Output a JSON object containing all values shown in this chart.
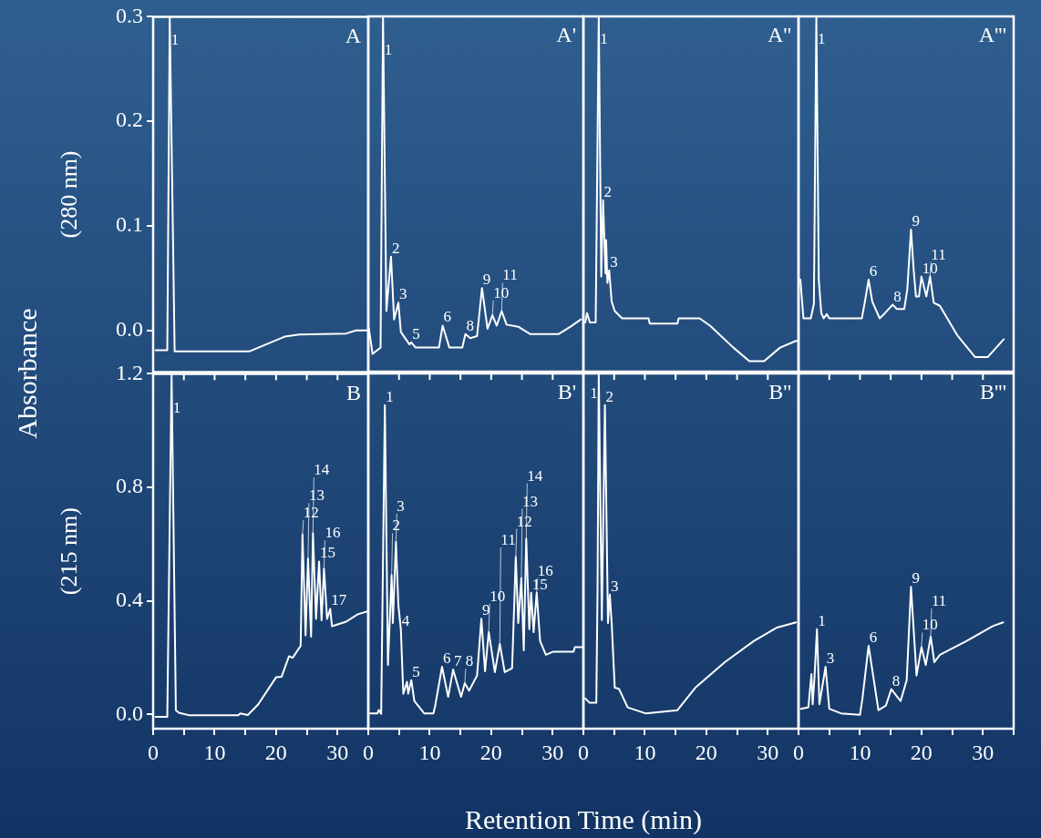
{
  "chart_data": [
    {
      "type": "line",
      "title": "A",
      "ylabel": "(280 nm)",
      "tick_labels": "y",
      "color": "#ffffff",
      "xlim": [
        0,
        35
      ],
      "ylim": [
        -0.04,
        0.3
      ],
      "yticks": [
        {
          "value": 0,
          "label": "0.0"
        },
        0.1,
        0.2,
        0.3
      ],
      "x": [
        0.4,
        2.3,
        2.7,
        3.5,
        15.7,
        21.4,
        23.8,
        31.4,
        33,
        35
      ],
      "values": [
        -0.019,
        -0.019,
        0.3,
        -0.02,
        -0.02,
        -0.006,
        -0.004,
        -0.003,
        0.0,
        0.0
      ],
      "annotations": [
        "Absorbance",
        {
          "text": "1",
          "x": 2.78,
          "y": 0.27
        }
      ]
    },
    {
      "type": "line",
      "title": "A'",
      "tick_labels": false,
      "color": "#ffffff",
      "xlim": [
        0,
        35
      ],
      "ylim": [
        -0.04,
        0.3
      ],
      "x": [
        0.1,
        0.7,
        2,
        2.4,
        2.95,
        3.7,
        4.2,
        4.9,
        5.3,
        6.7,
        7.0,
        7.7,
        11.5,
        12.1,
        13.2,
        15.3,
        15.8,
        16.6,
        17.7,
        18.5,
        19.4,
        20.2,
        20.9,
        21.7,
        22.5,
        24.4,
        26.3,
        31.0,
        32.9,
        34.6
      ],
      "values": [
        0.001,
        -0.023,
        -0.017,
        0.3,
        0.018,
        0.07,
        0.01,
        0.026,
        -0.002,
        -0.014,
        -0.012,
        -0.017,
        -0.017,
        0.004,
        -0.017,
        -0.017,
        -0.004,
        -0.008,
        -0.006,
        0.04,
        0.001,
        0.014,
        0.004,
        0.018,
        0.005,
        0.003,
        -0.004,
        -0.004,
        0.003,
        0.01
      ],
      "annotations": [
        {
          "text": "1",
          "x": 2.48,
          "y": 0.26
        },
        {
          "text": "2",
          "x": 3.7,
          "y": 0.07
        },
        {
          "text": "3",
          "x": 4.9,
          "y": 0.026
        },
        {
          "text": "5",
          "x": 7.0,
          "y": -0.012
        },
        {
          "text": "6",
          "x": 12.1,
          "y": 0.004
        },
        {
          "text": "8",
          "x": 15.8,
          "y": -0.004
        },
        {
          "text": "9",
          "x": 18.5,
          "y": 0.04
        },
        {
          "text": "10",
          "x": 20.2,
          "y": 0.014
        },
        {
          "text": "11",
          "x": 21.7,
          "y": 0.018
        }
      ]
    },
    {
      "type": "line",
      "title": "A''",
      "tick_labels": false,
      "color": "#ffffff",
      "xlim": [
        0,
        35
      ],
      "ylim": [
        -0.04,
        0.3
      ],
      "x": [
        0.3,
        0.6,
        1.05,
        2,
        2.5,
        2.9,
        3.2,
        3.6,
        3.7,
        3.9,
        4.2,
        4.6,
        5.1,
        6.3,
        10.6,
        10.8,
        15.3,
        15.5,
        18.9,
        20.6,
        24.4,
        27,
        29.4,
        32,
        34.4,
        35
      ],
      "values": [
        0.007,
        0.016,
        0.007,
        0.007,
        0.3,
        0.051,
        0.124,
        0.054,
        0.086,
        0.045,
        0.057,
        0.027,
        0.018,
        0.011,
        0.011,
        0.006,
        0.006,
        0.011,
        0.011,
        0.004,
        -0.017,
        -0.03,
        -0.03,
        -0.017,
        -0.011,
        -0.01
      ],
      "annotations": [
        {
          "text": "1",
          "x": 2.55,
          "y": 0.27
        },
        {
          "text": "2",
          "x": 3.2,
          "y": 0.124
        },
        {
          "text": "3",
          "x": 4.2,
          "y": 0.057
        }
      ]
    },
    {
      "type": "line",
      "title": "A'''",
      "tick_labels": false,
      "color": "#ffffff",
      "xlim": [
        0,
        35
      ],
      "ylim": [
        -0.04,
        0.3
      ],
      "x": [
        0.3,
        0.8,
        2.0,
        2.5,
        2.9,
        3.3,
        3.7,
        4.1,
        4.6,
        5.0,
        10.3,
        10.8,
        11.4,
        12,
        13.2,
        13.9,
        15.3,
        16.0,
        17.2,
        17.7,
        18.3,
        18.7,
        19.1,
        19.6,
        20,
        20.8,
        21.4,
        22,
        23,
        25.8,
        28.7,
        30.8,
        33.4
      ],
      "values": [
        0.048,
        0.011,
        0.011,
        0.025,
        0.3,
        0.048,
        0.016,
        0.011,
        0.015,
        0.011,
        0.011,
        0.027,
        0.048,
        0.027,
        0.011,
        0.015,
        0.024,
        0.02,
        0.02,
        0.039,
        0.096,
        0.06,
        0.032,
        0.032,
        0.051,
        0.032,
        0.051,
        0.026,
        0.023,
        -0.005,
        -0.026,
        -0.026,
        -0.009
      ],
      "annotations": [
        {
          "text": "1",
          "x": 2.95,
          "y": 0.27
        },
        {
          "text": "6",
          "x": 11.4,
          "y": 0.048
        },
        {
          "text": "8",
          "x": 15.3,
          "y": 0.024
        },
        {
          "text": "9",
          "x": 18.3,
          "y": 0.096
        },
        {
          "text": "10",
          "x": 20,
          "y": 0.051
        },
        {
          "text": "11",
          "x": 21.4,
          "y": 0.051
        }
      ]
    },
    {
      "type": "line",
      "title": "B",
      "ylabel": "(215 nm)",
      "xlabel": "Retention Time (min)",
      "color": "#ffffff",
      "xlim": [
        0,
        35
      ],
      "xticks": [
        0,
        {
          "value": 5,
          "label": null
        },
        10,
        {
          "value": 15,
          "label": null
        },
        20,
        {
          "value": 25,
          "label": null
        },
        30,
        {
          "value": 35,
          "label": null
        }
      ],
      "ylim": [
        -0.05,
        1.2
      ],
      "yticks": [
        {
          "value": 0,
          "label": "0.0"
        },
        0.4,
        0.8,
        1.2
      ],
      "x": [
        0.4,
        2.3,
        3.0,
        3.7,
        4.2,
        5.9,
        13.8,
        14.2,
        15.4,
        17.1,
        20,
        20.9,
        22.1,
        22.7,
        24,
        24.3,
        24.8,
        25.2,
        25.7,
        26.0,
        26.5,
        27.0,
        27.4,
        27.8,
        28.3,
        28.8,
        29.1,
        31.4,
        33.3,
        35
      ],
      "values": [
        -0.008,
        -0.008,
        1.2,
        0.015,
        0.006,
        -0.003,
        -0.003,
        0.004,
        -0.002,
        0.036,
        0.131,
        0.133,
        0.205,
        0.2,
        0.242,
        0.634,
        0.279,
        0.549,
        0.274,
        0.639,
        0.337,
        0.539,
        0.332,
        0.514,
        0.337,
        0.372,
        0.311,
        0.327,
        0.353,
        0.364
      ],
      "annotations": [
        {
          "text": "1",
          "x": 3.09,
          "y": 1.05
        },
        {
          "text": "12",
          "x": 24.3,
          "y": 0.634
        },
        {
          "text": "13",
          "x": 25.2,
          "y": 0.549
        },
        {
          "text": "14",
          "x": 26.0,
          "y": 0.639
        },
        {
          "text": "15",
          "x": 27.0,
          "y": 0.539
        },
        {
          "text": "16",
          "x": 27.8,
          "y": 0.514
        },
        {
          "text": "17",
          "x": 28.8,
          "y": 0.372
        }
      ]
    },
    {
      "type": "line",
      "title": "B'",
      "tick_labels": "x",
      "color": "#ffffff",
      "xlim": [
        0,
        35
      ],
      "xticks": [
        0,
        {
          "value": 5,
          "label": null
        },
        10,
        {
          "value": 15,
          "label": null
        },
        20,
        {
          "value": 25,
          "label": null
        },
        30,
        {
          "value": 35,
          "label": null
        }
      ],
      "ylim": [
        -0.05,
        1.2
      ],
      "x": [
        0.3,
        1.5,
        1.7,
        2.1,
        2.7,
        3.2,
        3.8,
        4.0,
        4.5,
        4.9,
        5.3,
        5.7,
        6.3,
        6.5,
        7.0,
        7.5,
        9.1,
        10.6,
        10.9,
        12,
        13,
        13.8,
        15.1,
        15.7,
        16.4,
        17.7,
        18.4,
        19.0,
        19.6,
        20.6,
        21.4,
        22.2,
        23.4,
        24,
        24.4,
        24.9,
        25.3,
        25.7,
        26.2,
        26.5,
        26.9,
        27.4,
        27.96,
        28.9,
        30.1,
        33.4,
        33.6,
        34.9
      ],
      "values": [
        0.004,
        0.004,
        0.016,
        0.002,
        1.089,
        0.174,
        0.491,
        0.322,
        0.607,
        0.385,
        0.3,
        0.073,
        0.115,
        0.073,
        0.121,
        0.047,
        0.004,
        0.004,
        0.032,
        0.168,
        0.062,
        0.158,
        0.062,
        0.11,
        0.084,
        0.137,
        0.337,
        0.152,
        0.29,
        0.149,
        0.248,
        0.149,
        0.163,
        0.554,
        0.322,
        0.48,
        0.226,
        0.618,
        0.3,
        0.428,
        0.29,
        0.428,
        0.258,
        0.21,
        0.221,
        0.221,
        0.237,
        0.237
      ],
      "annotations": [
        {
          "text": "1",
          "x": 2.7,
          "y": 1.089
        },
        {
          "text": "2",
          "x": 3.8,
          "y": 0.491
        },
        {
          "text": "3",
          "x": 4.5,
          "y": 0.607
        },
        {
          "text": "4",
          "x": 5.3,
          "y": 0.3
        },
        {
          "text": "5",
          "x": 7.0,
          "y": 0.121
        },
        {
          "text": "6",
          "x": 12,
          "y": 0.168
        },
        {
          "text": "7",
          "x": 13.8,
          "y": 0.158
        },
        {
          "text": "8",
          "x": 15.7,
          "y": 0.11
        },
        {
          "text": "9",
          "x": 18.4,
          "y": 0.337
        },
        {
          "text": "10",
          "x": 19.6,
          "y": 0.29
        },
        {
          "text": "11",
          "x": 21.4,
          "y": 0.248
        },
        {
          "text": "12",
          "x": 24,
          "y": 0.554
        },
        {
          "text": "13",
          "x": 24.9,
          "y": 0.48
        },
        {
          "text": "14",
          "x": 25.7,
          "y": 0.618
        },
        {
          "text": "15",
          "x": 26.5,
          "y": 0.428
        },
        {
          "text": "16",
          "x": 27.4,
          "y": 0.428
        }
      ]
    },
    {
      "type": "line",
      "title": "B''",
      "tick_labels": "x",
      "color": "#ffffff",
      "xlim": [
        0,
        35
      ],
      "xticks": [
        0,
        {
          "value": 5,
          "label": null
        },
        10,
        {
          "value": 15,
          "label": null
        },
        20,
        {
          "value": 25,
          "label": null
        },
        30,
        {
          "value": 35,
          "label": null
        }
      ],
      "ylim": [
        -0.05,
        1.2
      ],
      "x": [
        0.3,
        1.0,
        2.1,
        2.3,
        2.5,
        3.0,
        3.5,
        4.0,
        4.3,
        4.6,
        5.1,
        5.8,
        7.2,
        10.1,
        15.3,
        18.2,
        23,
        27.7,
        31.5,
        34.6
      ],
      "values": [
        0.057,
        0.041,
        0.041,
        0.438,
        1.2,
        0.332,
        1.089,
        0.322,
        0.422,
        0.322,
        0.094,
        0.09,
        0.025,
        0.004,
        0.015,
        0.094,
        0.184,
        0.258,
        0.306,
        0.324
      ],
      "annotations": [
        {
          "text": "1",
          "x": 2.47,
          "y": 1.1
        },
        {
          "text": "2",
          "x": 3.5,
          "y": 1.089
        },
        {
          "text": "3",
          "x": 4.3,
          "y": 0.422
        }
      ]
    },
    {
      "type": "line",
      "title": "B'''",
      "tick_labels": "x",
      "color": "#ffffff",
      "xlim": [
        0,
        35
      ],
      "xticks": [
        0,
        {
          "value": 5,
          "label": null
        },
        10,
        {
          "value": 15,
          "label": null
        },
        20,
        {
          "value": 25,
          "label": null
        },
        30,
        {
          "value": 35,
          "label": null
        }
      ],
      "ylim": [
        -0.05,
        1.2
      ],
      "x": [
        0.4,
        1.6,
        2.1,
        2.3,
        2.6,
        3.0,
        3.4,
        4.4,
        5.0,
        6.9,
        10,
        10.4,
        11.4,
        13.0,
        14.2,
        15.1,
        16.6,
        17.6,
        18.3,
        19.2,
        20,
        20.7,
        21.5,
        22.1,
        23,
        27.3,
        31.6,
        33.3
      ],
      "values": [
        0.02,
        0.025,
        0.142,
        0.036,
        0.131,
        0.3,
        0.036,
        0.168,
        0.02,
        0.004,
        -0.001,
        0.057,
        0.242,
        0.015,
        0.031,
        0.089,
        0.047,
        0.121,
        0.449,
        0.137,
        0.237,
        0.174,
        0.274,
        0.184,
        0.21,
        0.258,
        0.311,
        0.324
      ],
      "annotations": [
        {
          "text": "1",
          "x": 3.0,
          "y": 0.3
        },
        {
          "text": "3",
          "x": 4.4,
          "y": 0.168
        },
        {
          "text": "6",
          "x": 11.4,
          "y": 0.242
        },
        {
          "text": "8",
          "x": 15.1,
          "y": 0.089
        },
        {
          "text": "9",
          "x": 18.3,
          "y": 0.449
        },
        {
          "text": "10",
          "x": 20,
          "y": 0.237
        },
        {
          "text": "11",
          "x": 21.5,
          "y": 0.274
        }
      ]
    }
  ]
}
